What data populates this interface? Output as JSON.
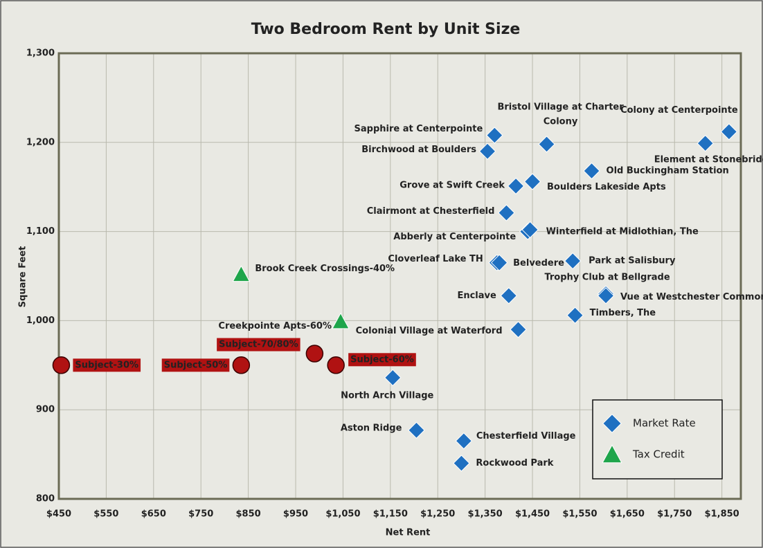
{
  "chart_data": {
    "type": "scatter",
    "title": "Two Bedroom Rent by Unit Size",
    "x_label": "Net Rent",
    "y_label": "Square Feet",
    "xlim": [
      450,
      1890
    ],
    "ylim": [
      800,
      1300
    ],
    "xticks": [
      {
        "value": 450,
        "label": "$450"
      },
      {
        "value": 550,
        "label": "$550"
      },
      {
        "value": 650,
        "label": "$650"
      },
      {
        "value": 750,
        "label": "$750"
      },
      {
        "value": 850,
        "label": "$850"
      },
      {
        "value": 950,
        "label": "$950"
      },
      {
        "value": 1050,
        "label": "$1,050"
      },
      {
        "value": 1150,
        "label": "$1,150"
      },
      {
        "value": 1250,
        "label": "$1,250"
      },
      {
        "value": 1350,
        "label": "$1,350"
      },
      {
        "value": 1450,
        "label": "$1,450"
      },
      {
        "value": 1550,
        "label": "$1,550"
      },
      {
        "value": 1650,
        "label": "$1,650"
      },
      {
        "value": 1750,
        "label": "$1,750"
      },
      {
        "value": 1850,
        "label": "$1,850"
      }
    ],
    "yticks": [
      800,
      900,
      {
        "value": 1000,
        "label": "1,000"
      },
      {
        "value": 1100,
        "label": "1,100"
      },
      {
        "value": 1200,
        "label": "1,200"
      },
      {
        "value": 1300,
        "label": "1,300"
      }
    ],
    "grid": true,
    "legend": "lower right",
    "series": [
      {
        "name": "Market Rate",
        "color": "#1f70c1",
        "marker": "diamond",
        "labels": [
          "Sapphire at Centerpointe",
          "Birchwood at Boulders",
          "Bristol Village at Charter Colony",
          "Colony at Centerpointe",
          "Element at Stonebridge",
          "Old Buckingham Station",
          "Grove at Swift Creek",
          "Boulders Lakeside Apts",
          "Clairmont at Chesterfield",
          "Abberly at Centerpointe",
          "Winterfield at Midlothian, The",
          "Cloverleaf Lake TH",
          "Belvedere",
          "Park at Salisbury",
          "Trophy Club at Bellgrade",
          "Vue at Westchester Commons",
          "Enclave",
          "Timbers, The",
          "Colonial Village at Waterford",
          "North Arch Village",
          "Aston Ridge",
          "Chesterfield Village",
          "Rockwood Park"
        ],
        "x": [
          1370,
          1355,
          1480,
          1865,
          1815,
          1575,
          1415,
          1450,
          1395,
          1440,
          1445,
          1375,
          1380,
          1535,
          1605,
          1605,
          1400,
          1540,
          1420,
          1155,
          1205,
          1305,
          1300
        ],
        "values": [
          1208,
          1190,
          1198,
          1212,
          1199,
          1168,
          1151,
          1156,
          1121,
          1100,
          1102,
          1065,
          1065,
          1067,
          1030,
          1028,
          1028,
          1006,
          990,
          936,
          877,
          865,
          840
        ]
      },
      {
        "name": "Tax Credit",
        "color": "#1fa54b",
        "marker": "triangle",
        "labels": [
          "Brook Creek Crossings-40%",
          "Creekpointe Apts-60%"
        ],
        "x": [
          835,
          1045
        ],
        "values": [
          1052,
          999
        ]
      },
      {
        "color": "#b01212",
        "marker": "circle",
        "labels": [
          "Subject-30%",
          "Subject-50%",
          "Subject-70/80%",
          "Subject-60%"
        ],
        "x": [
          455,
          835,
          990,
          1035
        ],
        "values": [
          950,
          950,
          963,
          950
        ]
      }
    ]
  }
}
